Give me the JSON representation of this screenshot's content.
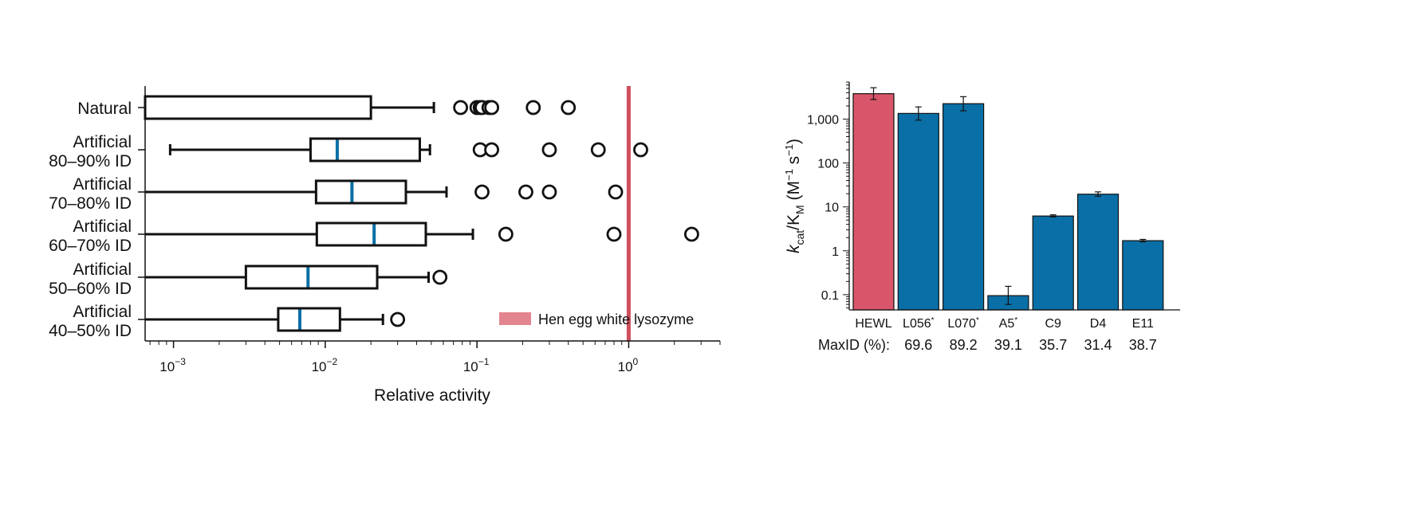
{
  "chart_data": [
    {
      "type": "boxplot",
      "orientation": "horizontal",
      "xscale": "log",
      "xlim": [
        0.00065,
        4
      ],
      "xlabel": "Relative activity",
      "xticks": [
        {
          "value": 0.001,
          "base": "10",
          "exp": "−3"
        },
        {
          "value": 0.01,
          "base": "10",
          "exp": "−2"
        },
        {
          "value": 0.1,
          "base": "10",
          "exp": "−1"
        },
        {
          "value": 1,
          "base": "10",
          "exp": "0"
        }
      ],
      "categories": [
        {
          "lines": [
            "Natural"
          ],
          "whisker_low": 0.00065,
          "q1": 0.00065,
          "median": null,
          "q3": 0.02,
          "whisker_high": 0.052,
          "outliers": [
            0.078,
            0.1,
            0.105,
            0.108,
            0.12,
            0.125,
            0.235,
            0.4
          ]
        },
        {
          "lines": [
            "Artificial",
            "80–90% ID"
          ],
          "whisker_low": 0.00095,
          "q1": 0.008,
          "median": 0.012,
          "q3": 0.042,
          "whisker_high": 0.049,
          "outliers": [
            0.105,
            0.125,
            0.3,
            0.63,
            1.2
          ]
        },
        {
          "lines": [
            "Artificial",
            "70–80% ID"
          ],
          "whisker_low": 0.00065,
          "q1": 0.0087,
          "median": 0.015,
          "q3": 0.034,
          "whisker_high": 0.063,
          "outliers": [
            0.108,
            0.21,
            0.3,
            0.82
          ]
        },
        {
          "lines": [
            "Artificial",
            "60–70% ID"
          ],
          "whisker_low": 0.00065,
          "q1": 0.0088,
          "median": 0.021,
          "q3": 0.046,
          "whisker_high": 0.094,
          "outliers": [
            0.155,
            0.8,
            2.6
          ]
        },
        {
          "lines": [
            "Artificial",
            "50–60% ID"
          ],
          "whisker_low": 0.00065,
          "q1": 0.003,
          "median": 0.0077,
          "q3": 0.022,
          "whisker_high": 0.048,
          "outliers": [
            0.057
          ]
        },
        {
          "lines": [
            "Artificial",
            "40–50% ID"
          ],
          "whisker_low": 0.00065,
          "q1": 0.0049,
          "median": 0.0068,
          "q3": 0.0125,
          "whisker_high": 0.024,
          "outliers": [
            0.03
          ]
        }
      ],
      "reference_line": {
        "value": 1,
        "label": "Hen egg white lysozyme",
        "color": "#cf4f5c",
        "legend_color": "#e3858f"
      },
      "legend_position": "bottom-right",
      "box_color": "#111111",
      "median_color": "#0a6fa6"
    },
    {
      "type": "bar",
      "yscale": "log",
      "ylim": [
        0.045,
        7000
      ],
      "ylabel": {
        "k": "k",
        "cat": "cat",
        "slash": "/K",
        "M": "M",
        "open": " (M",
        "m1": "−1",
        "s": " s",
        "s1": "−1",
        "close": ")"
      },
      "yticks": [
        {
          "value": 0.1,
          "label": "0.1"
        },
        {
          "value": 1,
          "label": "1"
        },
        {
          "value": 10,
          "label": "10"
        },
        {
          "value": 100,
          "label": "100"
        },
        {
          "value": 1000,
          "label": "1,000"
        }
      ],
      "bars": [
        {
          "name": "HEWL",
          "mark": "",
          "value": 3800,
          "err_low": 2800,
          "err_high": 5200,
          "color": "#d9566a",
          "maxid": ""
        },
        {
          "name": "L056",
          "mark": "*",
          "value": 1350,
          "err_low": 950,
          "err_high": 1900,
          "color": "#0a6fa6",
          "maxid": "69.6"
        },
        {
          "name": "L070",
          "mark": "*",
          "value": 2250,
          "err_low": 1550,
          "err_high": 3250,
          "color": "#0a6fa6",
          "maxid": "89.2"
        },
        {
          "name": "A5",
          "mark": "*",
          "value": 0.095,
          "err_low": 0.06,
          "err_high": 0.155,
          "color": "#0a6fa6",
          "maxid": "39.1"
        },
        {
          "name": "C9",
          "mark": "",
          "value": 6.2,
          "err_low": 5.9,
          "err_high": 6.6,
          "color": "#0a6fa6",
          "maxid": "35.7"
        },
        {
          "name": "D4",
          "mark": "",
          "value": 19.5,
          "err_low": 17.5,
          "err_high": 22,
          "color": "#0a6fa6",
          "maxid": "31.4"
        },
        {
          "name": "E11",
          "mark": "",
          "value": 1.7,
          "err_low": 1.6,
          "err_high": 1.82,
          "color": "#0a6fa6",
          "maxid": "38.7"
        }
      ],
      "maxid_label": "MaxID (%):"
    }
  ]
}
